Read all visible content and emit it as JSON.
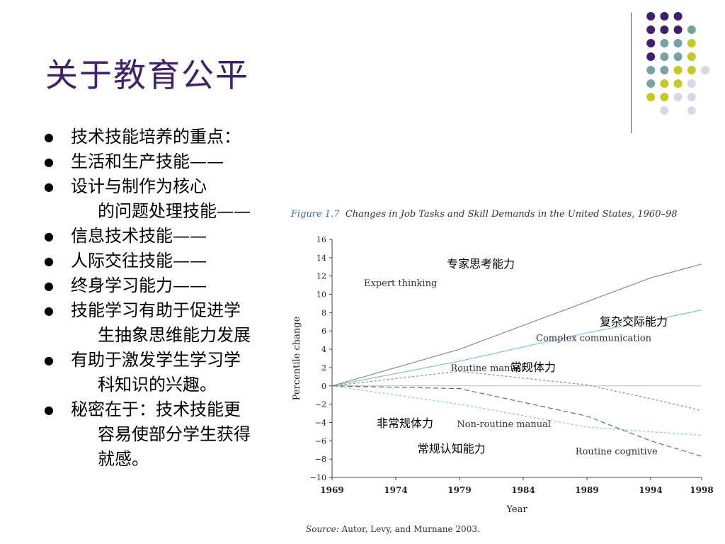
{
  "slide": {
    "title": "关于教育公平",
    "bullets": [
      {
        "line1": "技术技能培养的重点：",
        "line2": ""
      },
      {
        "line1": "生活和生产技能——",
        "line2": ""
      },
      {
        "line1": "设计与制作为核心",
        "line2": "的问题处理技能——"
      },
      {
        "line1": "信息技术技能——",
        "line2": ""
      },
      {
        "line1": "人际交往技能——",
        "line2": ""
      },
      {
        "line1": "终身学习能力——",
        "line2": ""
      },
      {
        "line1": "技能学习有助于促进学",
        "line2": "生抽象思维能力发展"
      },
      {
        "line1": "有助于激发学生学习学",
        "line2": "科知识的兴趣。"
      },
      {
        "line1": "秘密在于：技术技能更",
        "line2": "容易使部分学生获得",
        "line3": "就感。"
      }
    ],
    "colors": {
      "title": "#3f1f6e",
      "dot_purple": "#3f1f6e",
      "dot_teal": "#74a3a3",
      "dot_yellow": "#c6c91f",
      "dot_lilac": "#d9d7ea"
    }
  },
  "figure": {
    "label": "Figure 1.7",
    "caption": "Changes in Job Tasks and Skill Demands in the United States, 1960–98",
    "source_label": "Source:",
    "source_text": "Autor, Levy, and Murnane 2003."
  },
  "chart_data": {
    "type": "line",
    "title": "Changes in Job Tasks and Skill Demands in the United States, 1960–98",
    "xlabel": "Year",
    "ylabel": "Percentile change",
    "x": [
      1969,
      1979,
      1989,
      1994,
      1998
    ],
    "xticks": [
      "1969",
      "1974",
      "1979",
      "1984",
      "1989",
      "1994",
      "1998"
    ],
    "yticks": [
      "16",
      "14",
      "12",
      "10",
      "8",
      "6",
      "4",
      "2",
      "0",
      "−2",
      "−4",
      "−6",
      "−8",
      "−10"
    ],
    "xlim": [
      1969,
      1998
    ],
    "ylim": [
      -10,
      16
    ],
    "grid": false,
    "series": [
      {
        "name": "Expert thinking",
        "cn": "专家思考能力",
        "color": "#8a8a8a",
        "dash": "",
        "values": [
          0,
          4.0,
          9.2,
          11.8,
          13.3
        ]
      },
      {
        "name": "Complex communication",
        "cn": "复杂交际能力",
        "color": "#7fc4dc",
        "dash": "",
        "values": [
          0,
          2.7,
          5.8,
          7.1,
          8.3
        ]
      },
      {
        "name": "Routine manual",
        "cn": "常规体力",
        "color": "#8a8a8a",
        "dash": "3,3",
        "values": [
          0,
          1.6,
          0.1,
          -1.4,
          -2.7
        ]
      },
      {
        "name": "Non-routine manual",
        "cn": "非常规体力",
        "color": "#7fc4dc",
        "dash": "3,3",
        "values": [
          0,
          -2.0,
          -4.5,
          -5.0,
          -5.4
        ]
      },
      {
        "name": "Routine cognitive",
        "cn": "常规认知能力",
        "color": "#6a6a6a",
        "dash": "7,4",
        "values": [
          0,
          -0.3,
          -3.3,
          -6.0,
          -7.7
        ]
      }
    ]
  }
}
